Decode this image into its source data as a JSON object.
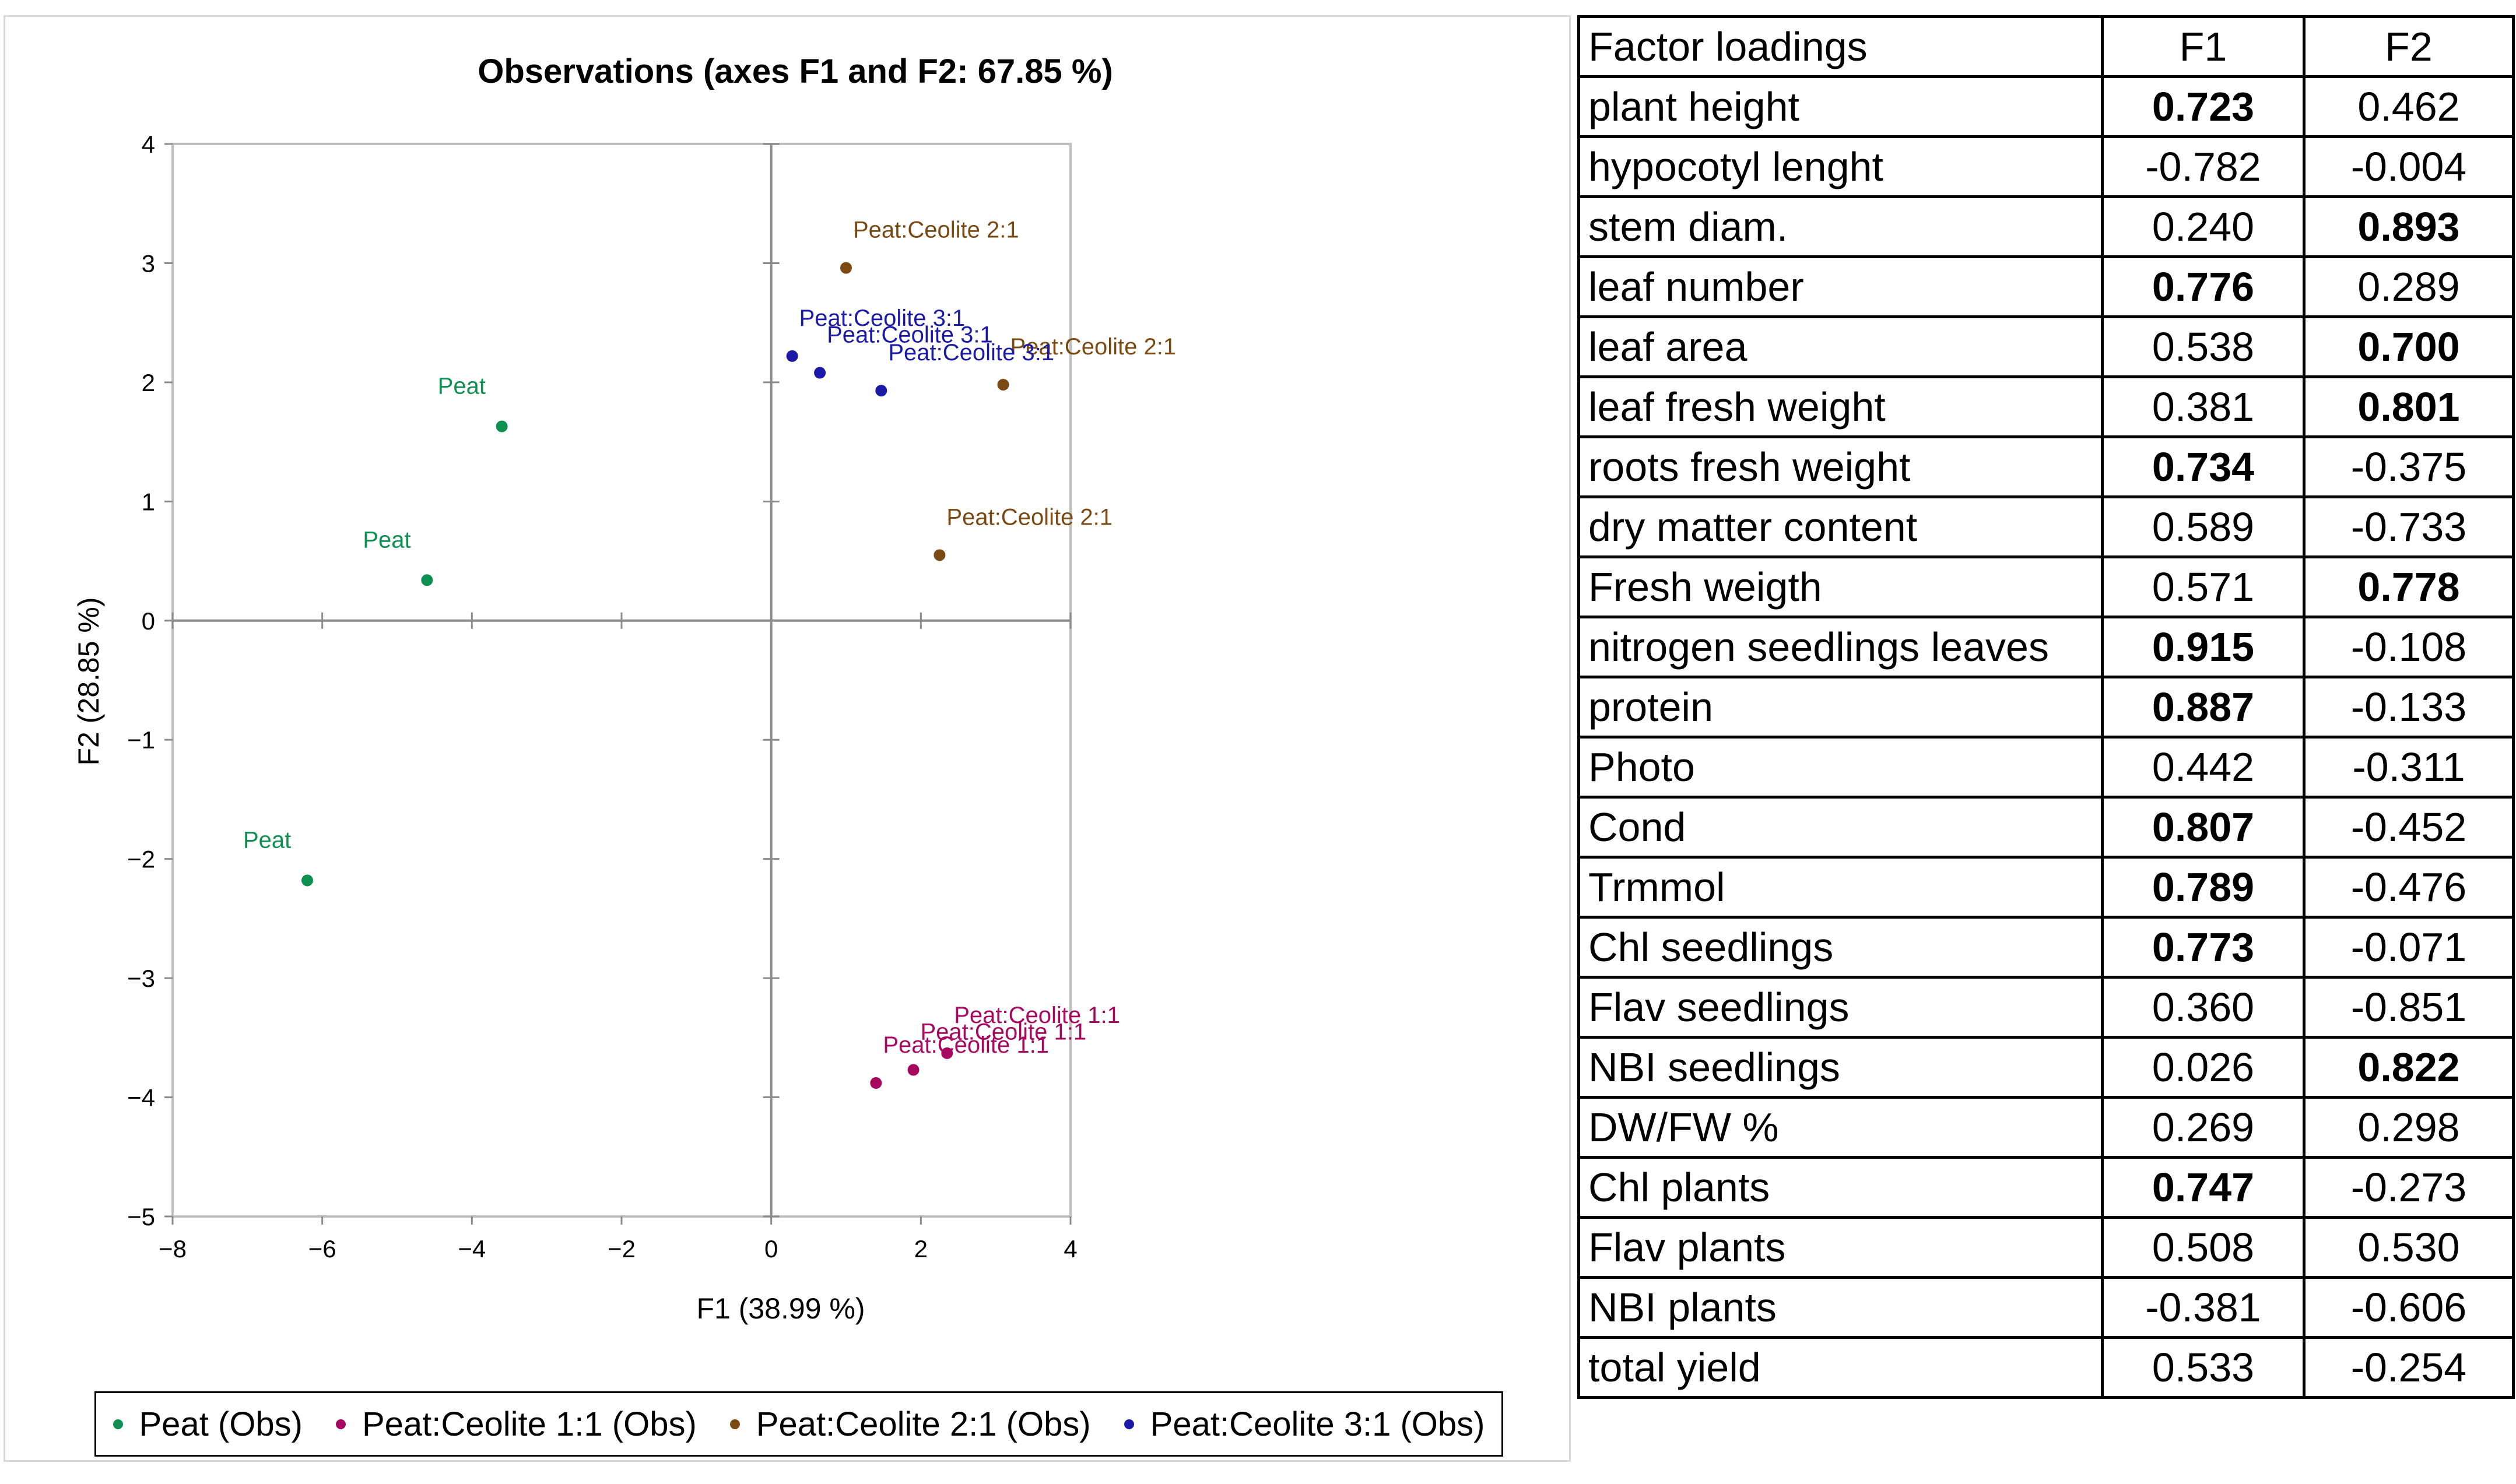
{
  "chart_data": {
    "type": "scatter",
    "title": "Observations (axes F1 and F2: 67.85 %)",
    "xlabel": "F1 (38.99 %)",
    "ylabel": "F2 (28.85 %)",
    "xlim": [
      -8,
      4
    ],
    "ylim": [
      -5,
      4
    ],
    "xticks": [
      -8,
      -6,
      -4,
      -2,
      0,
      2,
      4
    ],
    "yticks": [
      -5,
      -4,
      -3,
      -2,
      -1,
      0,
      1,
      2,
      3,
      4
    ],
    "xtick_labels": [
      "−8",
      "−6",
      "−4",
      "−2",
      "0",
      "2",
      "4"
    ],
    "ytick_labels": [
      "−5",
      "−4",
      "−3",
      "−2",
      "−1",
      "0",
      "1",
      "2",
      "3",
      "4"
    ],
    "series": [
      {
        "name": "Peat (Obs)",
        "color": "#0e9150",
        "points": [
          {
            "x": -3.6,
            "y": 1.63,
            "label": "Peat"
          },
          {
            "x": -4.6,
            "y": 0.34,
            "label": "Peat"
          },
          {
            "x": -6.2,
            "y": -2.18,
            "label": "Peat"
          }
        ]
      },
      {
        "name": "Peat:Ceolite 1:1 (Obs)",
        "color": "#a6095f",
        "points": [
          {
            "x": 1.4,
            "y": -3.88,
            "label": "Peat:Ceolite  1:1"
          },
          {
            "x": 1.9,
            "y": -3.77,
            "label": "Peat:Ceolite  1:1"
          },
          {
            "x": 2.35,
            "y": -3.63,
            "label": "Peat:Ceolite  1:1"
          }
        ]
      },
      {
        "name": "Peat:Ceolite 2:1 (Obs)",
        "color": "#7b4a12",
        "points": [
          {
            "x": 1.0,
            "y": 2.96,
            "label": "Peat:Ceolite  2:1"
          },
          {
            "x": 3.1,
            "y": 1.98,
            "label": "Peat:Ceolite  2:1"
          },
          {
            "x": 2.25,
            "y": 0.55,
            "label": "Peat:Ceolite  2:1"
          }
        ]
      },
      {
        "name": "Peat:Ceolite 3:1 (Obs)",
        "color": "#1a1aa6",
        "points": [
          {
            "x": 0.28,
            "y": 2.22,
            "label": "Peat:Ceolite  3:1"
          },
          {
            "x": 0.65,
            "y": 2.08,
            "label": "Peat:Ceolite  3:1"
          },
          {
            "x": 1.47,
            "y": 1.93,
            "label": "Peat:Ceolite  3:1"
          }
        ]
      }
    ],
    "legend": {
      "placement": "bottom",
      "entries": [
        "Peat (Obs)",
        "Peat:Ceolite 1:1 (Obs)",
        "Peat:Ceolite 2:1 (Obs)",
        "Peat:Ceolite 3:1 (Obs)"
      ]
    }
  },
  "loadings_table": {
    "headers": [
      "Factor loadings",
      "F1",
      "F2"
    ],
    "rows": [
      {
        "name": "plant height",
        "f1": "0.723",
        "f2": "0.462",
        "f1_bold": true,
        "f2_bold": false
      },
      {
        "name": "hypocotyl  lenght",
        "f1": "-0.782",
        "f2": "-0.004",
        "f1_bold": false,
        "f2_bold": false
      },
      {
        "name": "stem diam.",
        "f1": "0.240",
        "f2": "0.893",
        "f1_bold": false,
        "f2_bold": true
      },
      {
        "name": "leaf number",
        "f1": "0.776",
        "f2": "0.289",
        "f1_bold": true,
        "f2_bold": false
      },
      {
        "name": "leaf area",
        "f1": "0.538",
        "f2": "0.700",
        "f1_bold": false,
        "f2_bold": true
      },
      {
        "name": "leaf fresh weight",
        "f1": "0.381",
        "f2": "0.801",
        "f1_bold": false,
        "f2_bold": true
      },
      {
        "name": "roots fresh weight",
        "f1": "0.734",
        "f2": "-0.375",
        "f1_bold": true,
        "f2_bold": false
      },
      {
        "name": "dry matter  content",
        "f1": "0.589",
        "f2": "-0.733",
        "f1_bold": false,
        "f2_bold": false
      },
      {
        "name": "Fresh weigth",
        "f1": "0.571",
        "f2": "0.778",
        "f1_bold": false,
        "f2_bold": true
      },
      {
        "name": "nitrogen seedlings leaves",
        "f1": "0.915",
        "f2": "-0.108",
        "f1_bold": true,
        "f2_bold": false
      },
      {
        "name": "protein",
        "f1": "0.887",
        "f2": "-0.133",
        "f1_bold": true,
        "f2_bold": false
      },
      {
        "name": "Photo",
        "f1": "0.442",
        "f2": "-0.311",
        "f1_bold": false,
        "f2_bold": false
      },
      {
        "name": "Cond",
        "f1": "0.807",
        "f2": "-0.452",
        "f1_bold": true,
        "f2_bold": false
      },
      {
        "name": "Trmmol",
        "f1": "0.789",
        "f2": "-0.476",
        "f1_bold": true,
        "f2_bold": false
      },
      {
        "name": "Chl seedlings",
        "f1": "0.773",
        "f2": "-0.071",
        "f1_bold": true,
        "f2_bold": false
      },
      {
        "name": "Flav seedlings",
        "f1": "0.360",
        "f2": "-0.851",
        "f1_bold": false,
        "f2_bold": false
      },
      {
        "name": "NBI seedlings",
        "f1": "0.026",
        "f2": "0.822",
        "f1_bold": false,
        "f2_bold": true
      },
      {
        "name": "DW/FW %",
        "f1": "0.269",
        "f2": "0.298",
        "f1_bold": false,
        "f2_bold": false
      },
      {
        "name": "Chl plants",
        "f1": "0.747",
        "f2": "-0.273",
        "f1_bold": true,
        "f2_bold": false
      },
      {
        "name": "Flav plants",
        "f1": "0.508",
        "f2": "0.530",
        "f1_bold": false,
        "f2_bold": false
      },
      {
        "name": "NBI plants",
        "f1": "-0.381",
        "f2": "-0.606",
        "f1_bold": false,
        "f2_bold": false
      },
      {
        "name": "total yield",
        "f1": "0.533",
        "f2": "-0.254",
        "f1_bold": false,
        "f2_bold": false
      }
    ]
  }
}
